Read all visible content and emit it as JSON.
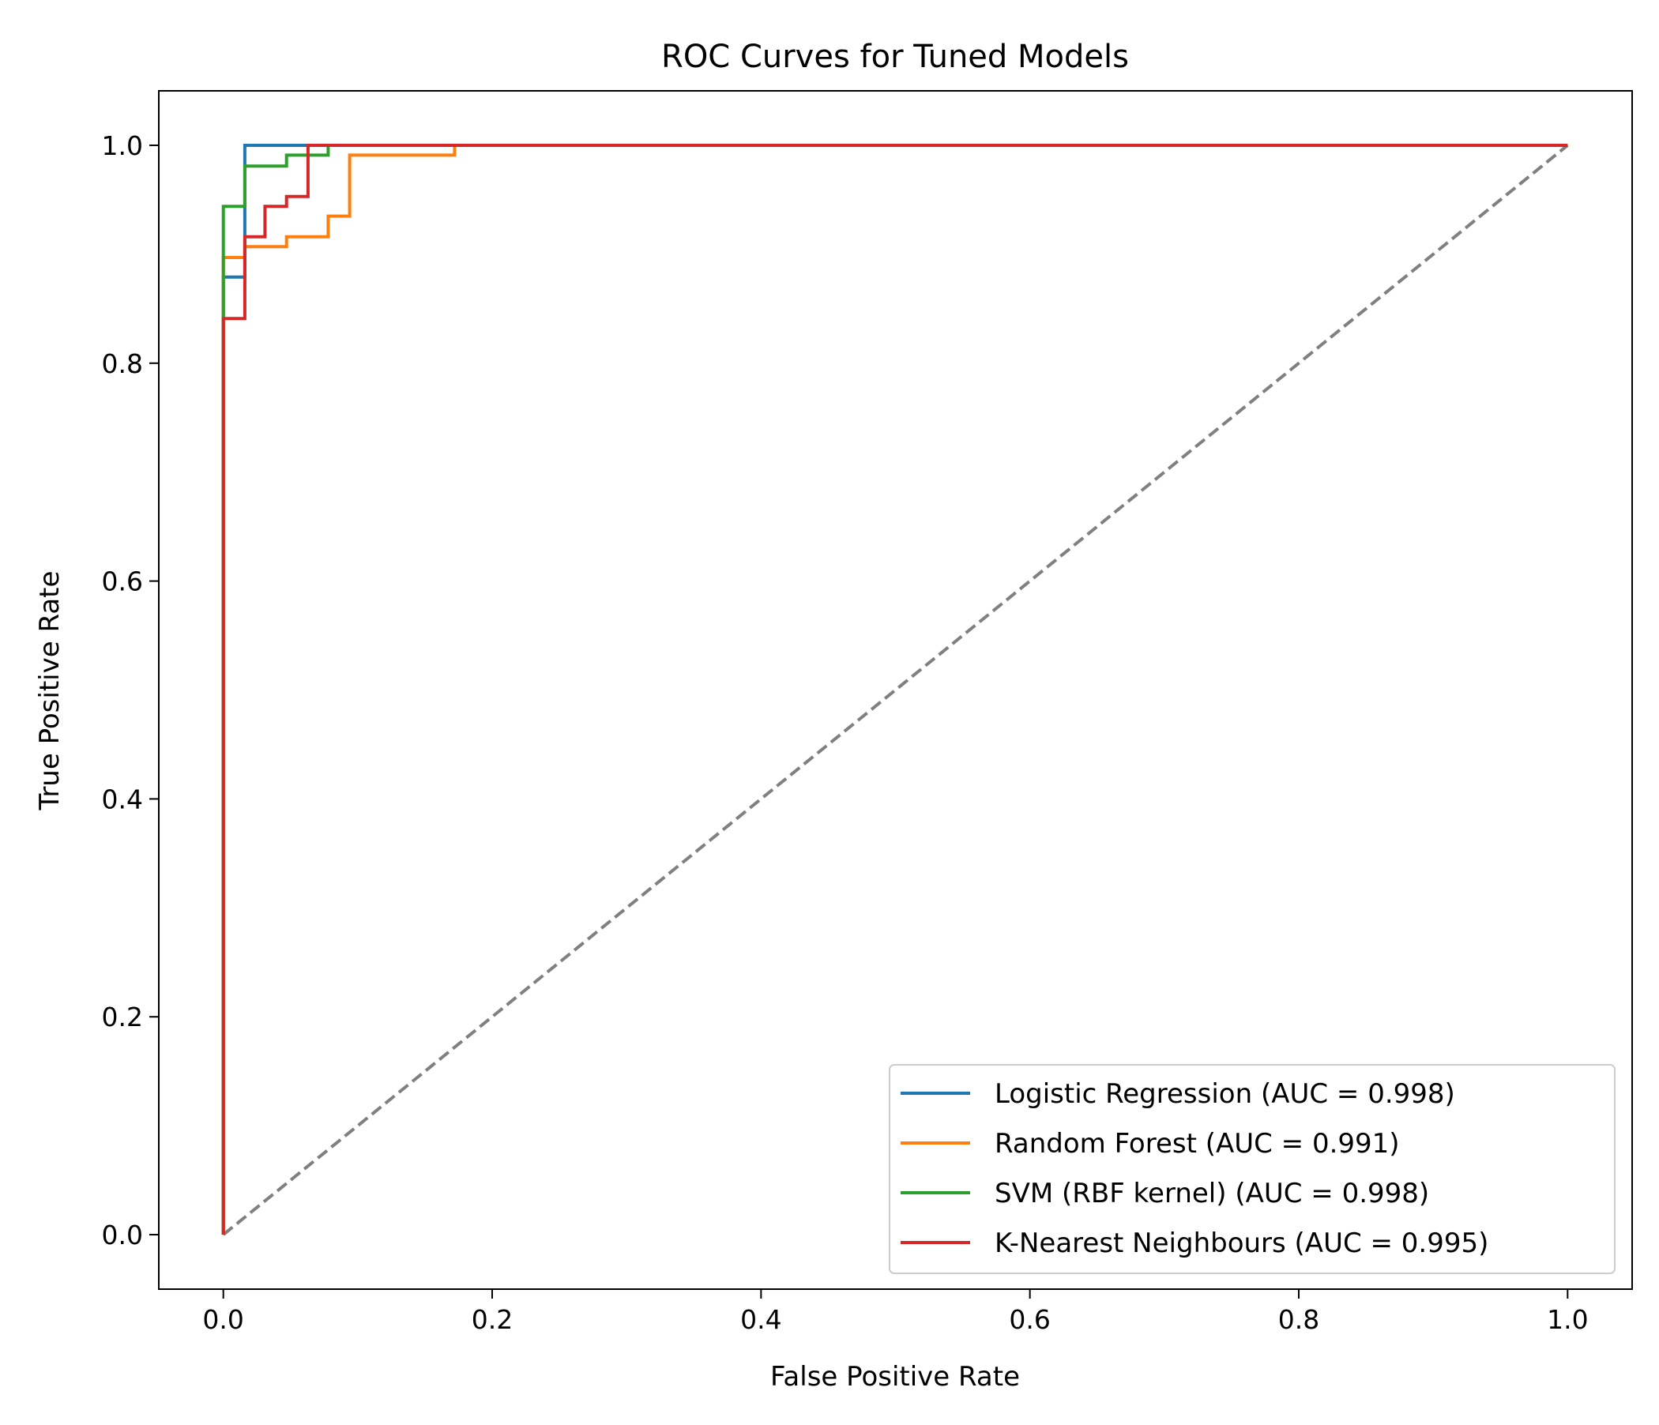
{
  "chart_data": {
    "type": "line",
    "title": "ROC Curves for Tuned Models",
    "xlabel": "False Positive Rate",
    "ylabel": "True Positive Rate",
    "xlim": [
      -0.048,
      1.048
    ],
    "ylim": [
      -0.05,
      1.05
    ],
    "xticks": [
      0.0,
      0.2,
      0.4,
      0.6,
      0.8,
      1.0
    ],
    "xtick_labels": [
      "0.0",
      "0.2",
      "0.4",
      "0.6",
      "0.8",
      "1.0"
    ],
    "yticks": [
      0.0,
      0.2,
      0.4,
      0.6,
      0.8,
      1.0
    ],
    "ytick_labels": [
      "0.0",
      "0.2",
      "0.4",
      "0.6",
      "0.8",
      "1.0"
    ],
    "grid": false,
    "legend_position": "lower-right",
    "series": [
      {
        "name": "Logistic Regression (AUC = 0.998)",
        "color": "#1f77b4",
        "style": "step",
        "x": [
          0.0,
          0.0,
          0.016,
          0.016,
          1.0
        ],
        "y": [
          0.0,
          0.879,
          0.879,
          1.0,
          1.0
        ]
      },
      {
        "name": "Random Forest (AUC = 0.991)",
        "color": "#ff7f0e",
        "style": "step",
        "x": [
          0.0,
          0.0,
          0.016,
          0.016,
          0.047,
          0.047,
          0.078,
          0.078,
          0.094,
          0.094,
          0.172,
          0.172,
          1.0
        ],
        "y": [
          0.0,
          0.897,
          0.897,
          0.907,
          0.907,
          0.916,
          0.916,
          0.935,
          0.935,
          0.991,
          0.991,
          1.0,
          1.0
        ]
      },
      {
        "name": "SVM (RBF kernel) (AUC = 0.998)",
        "color": "#2ca02c",
        "style": "step",
        "x": [
          0.0,
          0.0,
          0.016,
          0.016,
          0.047,
          0.047,
          0.078,
          0.078,
          1.0
        ],
        "y": [
          0.0,
          0.944,
          0.944,
          0.981,
          0.981,
          0.991,
          0.991,
          1.0,
          1.0
        ]
      },
      {
        "name": "K-Nearest Neighbours (AUC = 0.995)",
        "color": "#d62728",
        "style": "step",
        "x": [
          0.0,
          0.0,
          0.016,
          0.016,
          0.031,
          0.031,
          0.047,
          0.047,
          0.063,
          0.063,
          1.0
        ],
        "y": [
          0.0,
          0.841,
          0.841,
          0.916,
          0.916,
          0.944,
          0.944,
          0.953,
          0.953,
          1.0,
          1.0
        ]
      }
    ],
    "reference_line": {
      "color": "#808080",
      "style": "dashed",
      "x": [
        0.0,
        1.0
      ],
      "y": [
        0.0,
        1.0
      ]
    }
  }
}
